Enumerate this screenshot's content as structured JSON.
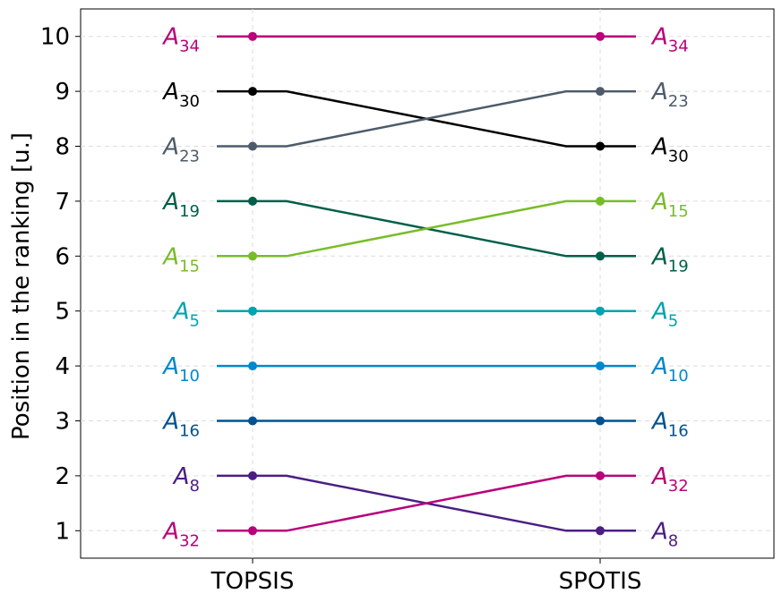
{
  "chart_data": {
    "type": "line",
    "title": "",
    "xlabel": "",
    "ylabel": "Position in the ranking [u.]",
    "categories": [
      "TOPSIS",
      "SPOTIS"
    ],
    "ylim": [
      0.5,
      10.5
    ],
    "yticks": [
      1,
      2,
      3,
      4,
      5,
      6,
      7,
      8,
      9,
      10
    ],
    "grid": true,
    "series": [
      {
        "name": "A34",
        "base": "A",
        "sub": "34",
        "color": "#b8007a",
        "values": [
          10,
          10
        ]
      },
      {
        "name": "A30",
        "base": "A",
        "sub": "30",
        "color": "#000000",
        "values": [
          9,
          8
        ]
      },
      {
        "name": "A23",
        "base": "A",
        "sub": "23",
        "color": "#4e5b6a",
        "values": [
          8,
          9
        ]
      },
      {
        "name": "A19",
        "base": "A",
        "sub": "19",
        "color": "#005f49",
        "values": [
          7,
          6
        ]
      },
      {
        "name": "A15",
        "base": "A",
        "sub": "15",
        "color": "#78bc29",
        "values": [
          6,
          7
        ]
      },
      {
        "name": "A5",
        "base": "A",
        "sub": "5",
        "color": "#00a3b0",
        "values": [
          5,
          5
        ]
      },
      {
        "name": "A10",
        "base": "A",
        "sub": "10",
        "color": "#0088cc",
        "values": [
          4,
          4
        ]
      },
      {
        "name": "A16",
        "base": "A",
        "sub": "16",
        "color": "#005290",
        "values": [
          3,
          3
        ]
      },
      {
        "name": "A8",
        "base": "A",
        "sub": "8",
        "color": "#4b1e83",
        "values": [
          2,
          1
        ]
      },
      {
        "name": "A32",
        "base": "A",
        "sub": "32",
        "color": "#b8007a",
        "values": [
          1,
          2
        ]
      }
    ]
  }
}
